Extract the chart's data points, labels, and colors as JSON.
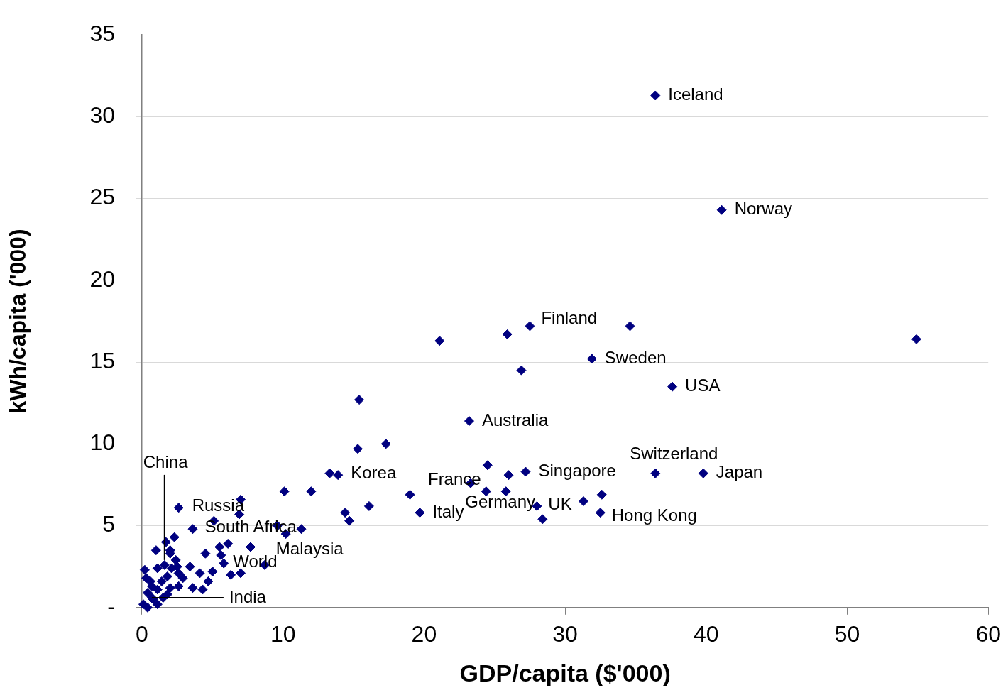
{
  "chart_data": {
    "type": "scatter",
    "xlabel": "GDP/capita ($'000)",
    "ylabel": "kWh/capita ('000)",
    "xlim": [
      0,
      60
    ],
    "xticks": [
      0,
      10,
      20,
      30,
      40,
      50,
      60
    ],
    "ylim": [
      0,
      35
    ],
    "yticks": [
      {
        "value": 0,
        "label": "-"
      },
      5,
      10,
      15,
      20,
      25,
      30,
      35
    ],
    "grid": "y",
    "legend": false,
    "marker": "diamond",
    "series": [
      {
        "color": "#000080",
        "x": [
          36.4,
          41.1,
          54.9,
          27.5,
          34.6,
          25.9,
          21.1,
          26.9,
          31.9,
          37.6,
          15.4,
          23.2,
          15.3,
          17.3,
          36.4,
          39.8,
          27.2,
          24.5,
          26.0,
          23.3,
          24.4,
          25.8,
          28.0,
          28.4,
          31.3,
          32.6,
          32.5,
          19.7,
          19.0,
          16.1,
          14.4,
          14.7,
          13.3,
          13.9,
          12.0,
          10.1,
          11.3,
          10.2,
          9.6,
          8.7,
          7.7,
          7.0,
          6.9,
          5.1,
          3.6,
          2.6,
          2.3,
          1.7,
          1.0,
          2.0,
          2.0,
          6.1,
          4.5,
          5.5,
          5.6,
          5.8,
          6.3,
          7.0,
          3.4,
          4.1,
          3.6,
          4.3,
          4.7,
          5.0,
          1.6,
          2.1,
          2.5,
          2.6,
          1.1,
          0.2,
          1.8,
          0.6,
          1.4,
          2.6,
          2.0,
          1.1,
          0.4,
          1.8,
          0.8,
          0.1,
          0.4,
          1.1,
          0.3,
          0.7,
          2.4,
          2.9,
          1.5,
          0.7
        ],
        "values": [
          31.3,
          24.3,
          16.4,
          17.2,
          17.2,
          16.7,
          16.3,
          14.5,
          15.2,
          13.5,
          12.7,
          11.4,
          9.7,
          10.0,
          8.2,
          8.2,
          8.3,
          8.7,
          8.1,
          7.6,
          7.1,
          7.1,
          6.2,
          5.4,
          6.5,
          6.9,
          5.8,
          5.8,
          6.9,
          6.2,
          5.8,
          5.3,
          8.2,
          8.1,
          7.1,
          7.1,
          4.8,
          4.5,
          5.0,
          2.6,
          3.7,
          6.6,
          5.7,
          5.3,
          4.8,
          6.1,
          4.3,
          4.0,
          3.5,
          3.5,
          3.3,
          3.9,
          3.3,
          3.7,
          3.2,
          2.7,
          2.0,
          2.1,
          2.5,
          2.1,
          1.2,
          1.1,
          1.6,
          2.2,
          2.6,
          2.4,
          2.5,
          2.1,
          2.4,
          2.3,
          1.9,
          1.6,
          1.6,
          1.3,
          1.2,
          1.1,
          0.9,
          0.8,
          0.5,
          0.2,
          0.0,
          0.2,
          1.8,
          1.3,
          2.9,
          1.8,
          0.6,
          0.6
        ]
      }
    ],
    "annotations": [
      {
        "text": "Iceland",
        "x": 36.4,
        "y": 31.3
      },
      {
        "text": "Norway",
        "x": 41.1,
        "y": 24.3
      },
      {
        "text": "Finland",
        "x": 27.5,
        "y": 17.2
      },
      {
        "text": "Sweden",
        "x": 31.9,
        "y": 15.2
      },
      {
        "text": "USA",
        "x": 37.6,
        "y": 13.5
      },
      {
        "text": "Australia",
        "x": 23.2,
        "y": 11.4
      },
      {
        "text": "Switzerland",
        "x": 36.4,
        "y": 8.2
      },
      {
        "text": "Japan",
        "x": 39.8,
        "y": 8.2
      },
      {
        "text": "Singapore",
        "x": 27.2,
        "y": 8.3
      },
      {
        "text": "Korea",
        "x": 13.9,
        "y": 8.1
      },
      {
        "text": "France",
        "x": 23.3,
        "y": 7.6
      },
      {
        "text": "Germany",
        "x": 28.0,
        "y": 6.2
      },
      {
        "text": "UK",
        "x": 28.4,
        "y": 5.4
      },
      {
        "text": "Hong Kong",
        "x": 32.5,
        "y": 5.8
      },
      {
        "text": "Italy",
        "x": 19.7,
        "y": 5.8
      },
      {
        "text": "Russia",
        "x": 2.6,
        "y": 6.1
      },
      {
        "text": "South Africa",
        "x": 3.6,
        "y": 4.8
      },
      {
        "text": "Malaysia",
        "x": 8.7,
        "y": 2.6
      },
      {
        "text": "World",
        "x": 5.8,
        "y": 2.7
      },
      {
        "text": "China",
        "x": 1.6,
        "y": 2.6
      },
      {
        "text": "India",
        "x": 0.7,
        "y": 0.6
      }
    ]
  }
}
